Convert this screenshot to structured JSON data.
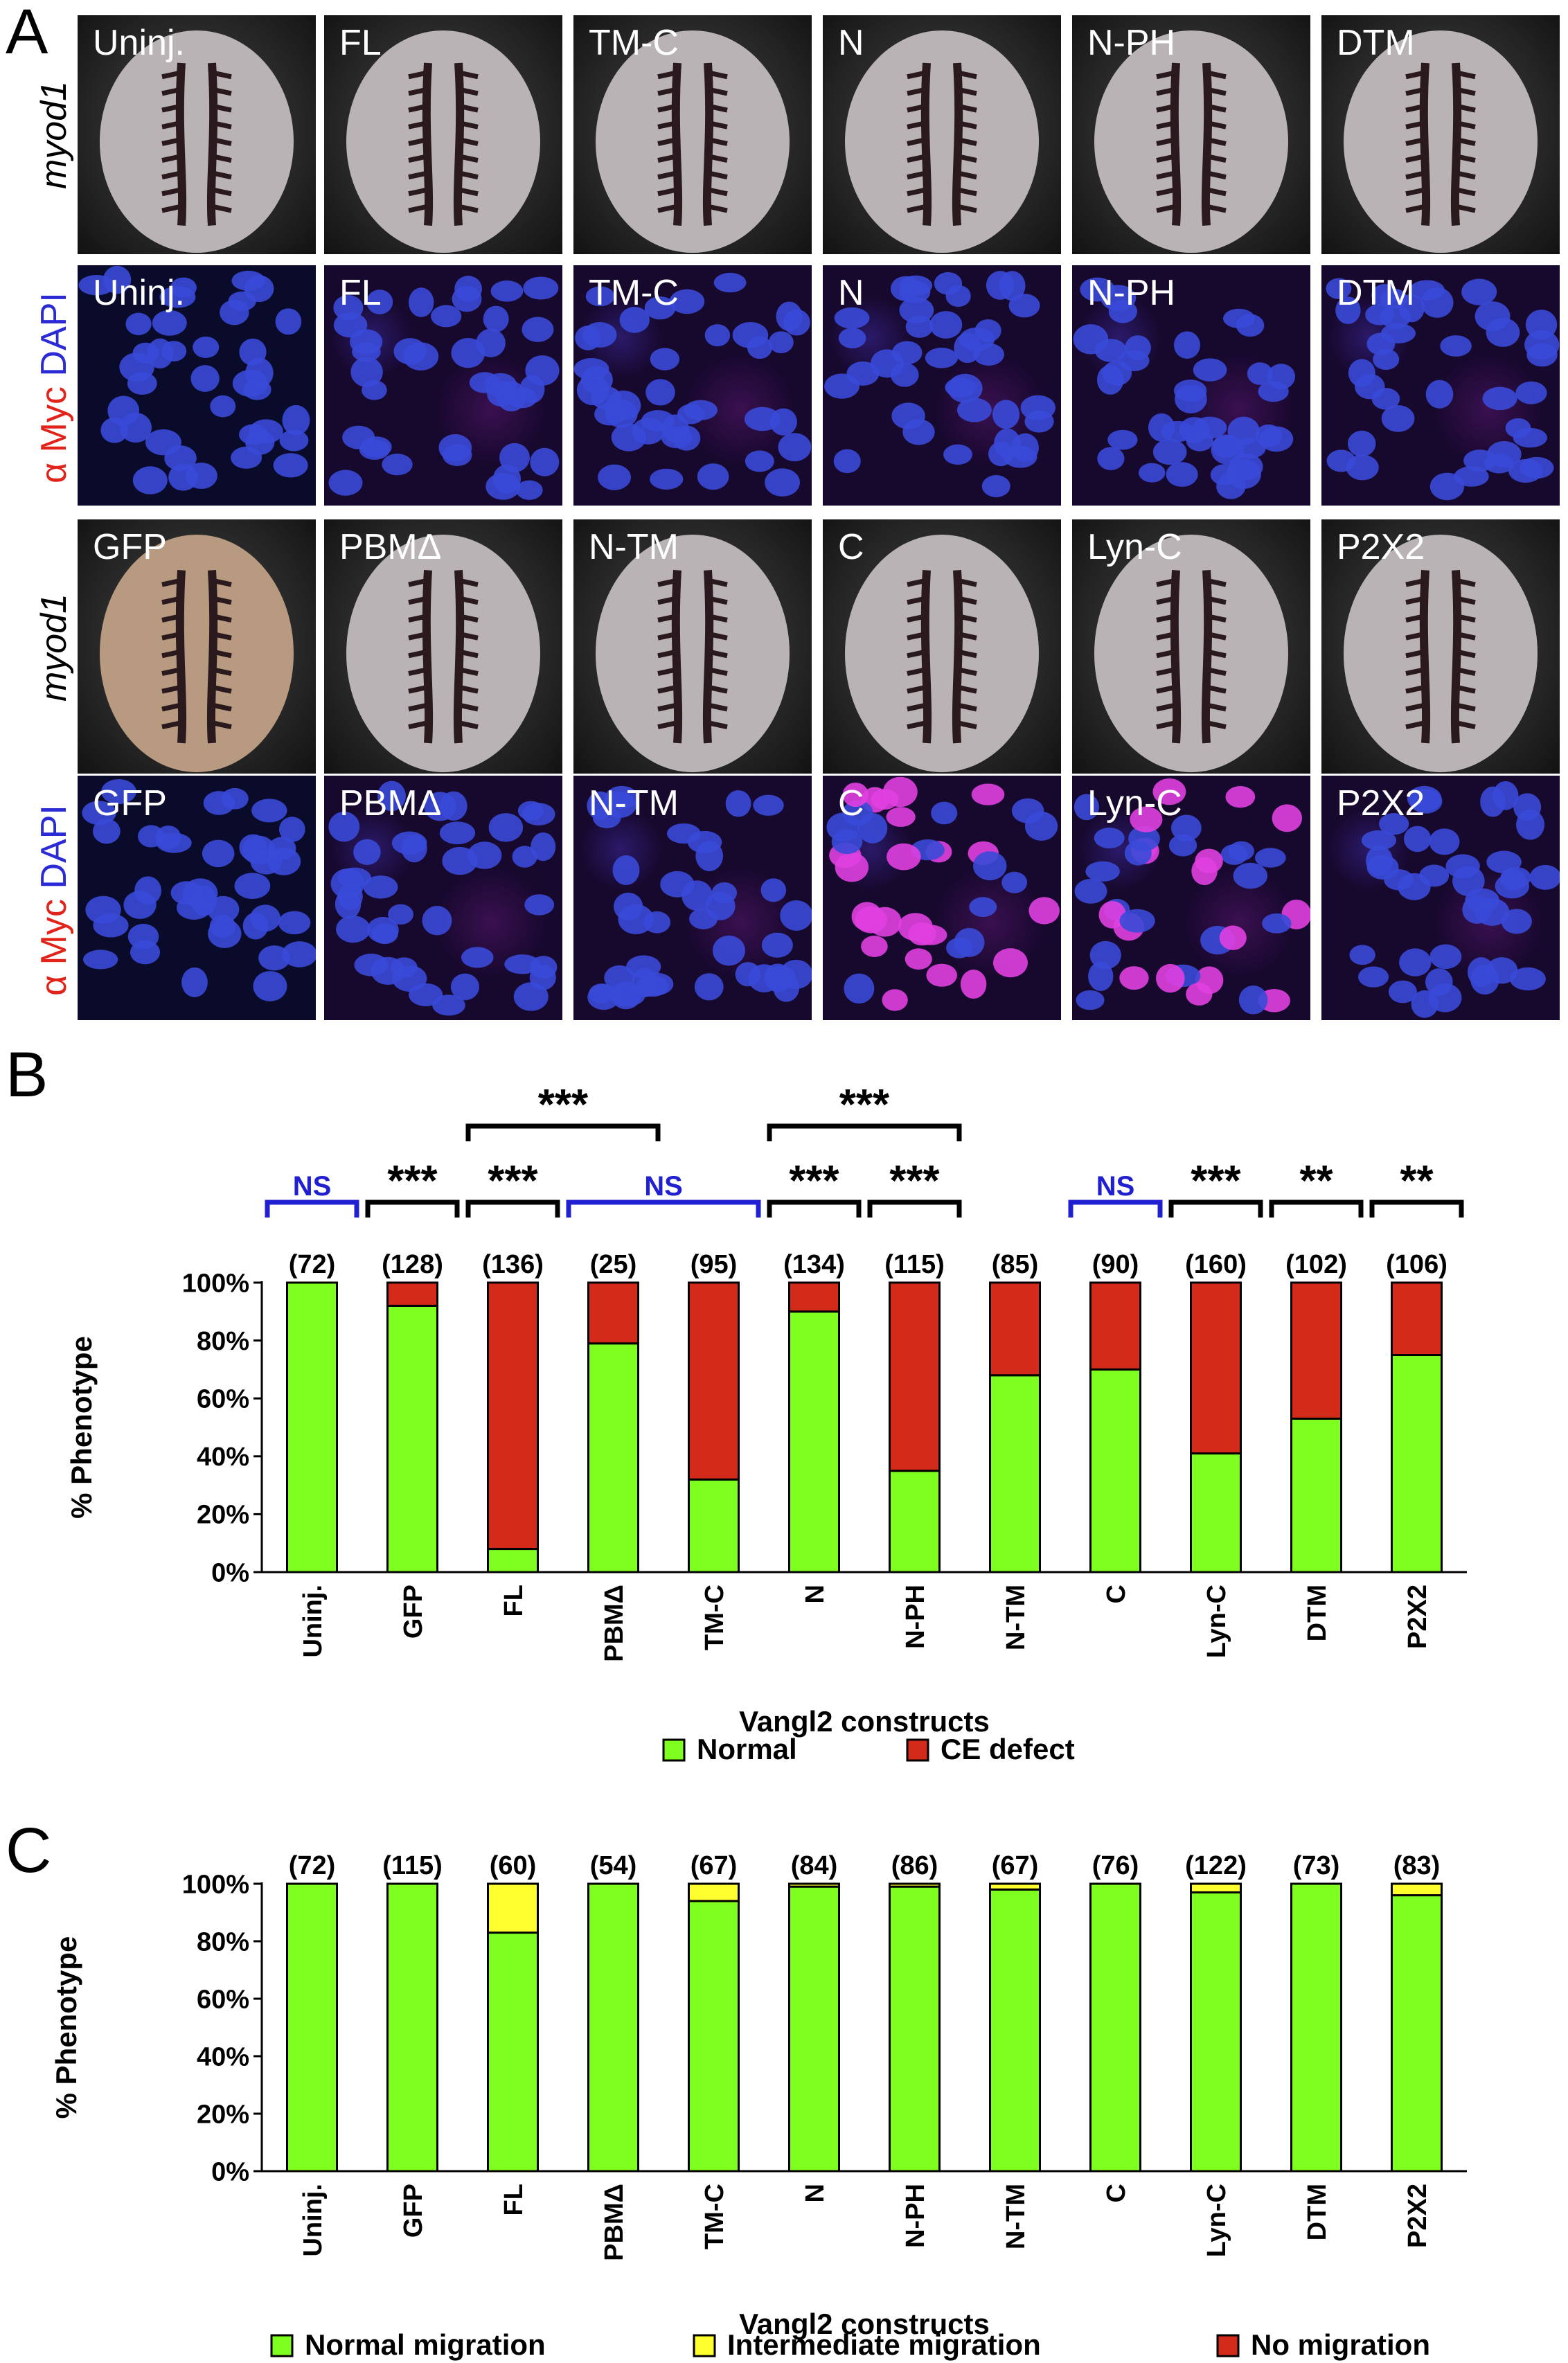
{
  "panels": {
    "A": "A",
    "B": "B",
    "C": "C"
  },
  "row_labels": {
    "row1_gene": "myod1",
    "row2_alpha": "α",
    "row2_myc": "Myc",
    "row2_dapi": "DAPI",
    "row3_gene": "myod1",
    "row4_alpha": "α",
    "row4_myc": "Myc",
    "row4_dapi": "DAPI"
  },
  "tiles": {
    "row1": [
      "Uninj.",
      "FL",
      "TM-C",
      "N",
      "N-PH",
      "DTM"
    ],
    "row2": [
      "Uninj.",
      "FL",
      "TM-C",
      "N",
      "N-PH",
      "DTM"
    ],
    "row3": [
      "GFP",
      "PBMΔ",
      "N-TM",
      "C",
      "Lyn-C",
      "P2X2"
    ],
    "row4": [
      "GFP",
      "PBMΔ",
      "N-TM",
      "C",
      "Lyn-C",
      "P2X2"
    ]
  },
  "colors": {
    "normal": "#7fff20",
    "ce_defect": "#d42a1a",
    "intermediate": "#ffff30",
    "no_migration": "#d42a1a",
    "ns_bracket": "#2020d0",
    "sig_bracket": "#000000"
  },
  "chart_data": [
    {
      "type": "bar",
      "stacked": true,
      "ylabel": "% Phenotype",
      "xlabel": "Vangl2 constructs",
      "ylim": [
        0,
        100
      ],
      "yticks": [
        "0%",
        "20%",
        "40%",
        "60%",
        "80%",
        "100%"
      ],
      "categories": [
        "Uninj.",
        "GFP",
        "FL",
        "PBMΔ",
        "TM-C",
        "N",
        "N-PH",
        "N-TM",
        "C",
        "Lyn-C",
        "DTM",
        "P2X2"
      ],
      "counts": [
        "(72)",
        "(128)",
        "(136)",
        "(25)",
        "(95)",
        "(134)",
        "(115)",
        "(85)",
        "(90)",
        "(160)",
        "(102)",
        "(106)"
      ],
      "series": [
        {
          "name": "Normal",
          "values": [
            100,
            92,
            8,
            79,
            32,
            90,
            35,
            68,
            70,
            41,
            53,
            75
          ]
        },
        {
          "name": "CE defect",
          "values": [
            0,
            8,
            92,
            21,
            68,
            10,
            65,
            32,
            30,
            59,
            47,
            25
          ]
        }
      ],
      "legend": "bottom",
      "significance": [
        {
          "from": 0,
          "to": 1,
          "label": "NS",
          "level": 1
        },
        {
          "from": 1,
          "to": 2,
          "label": "***",
          "level": 1
        },
        {
          "from": 2,
          "to": 3,
          "label": "***",
          "level": 1
        },
        {
          "from": 3,
          "to": 5,
          "label": "NS",
          "level": 1
        },
        {
          "from": 2,
          "to": 4,
          "label": "***",
          "level": 2
        },
        {
          "from": 5,
          "to": 6,
          "label": "***",
          "level": 1
        },
        {
          "from": 6,
          "to": 7,
          "label": "***",
          "level": 1
        },
        {
          "from": 5,
          "to": 7,
          "label": "***",
          "level": 2
        },
        {
          "from": 8,
          "to": 9,
          "label": "NS",
          "level": 1
        },
        {
          "from": 9,
          "to": 10,
          "label": "***",
          "level": 1
        },
        {
          "from": 10,
          "to": 11,
          "label": "**",
          "level": 1
        },
        {
          "from": 11,
          "to": 12,
          "label": "**",
          "level": 1
        }
      ]
    },
    {
      "type": "bar",
      "stacked": true,
      "ylabel": "% Phenotype",
      "xlabel": "Vangl2 constructs",
      "ylim": [
        0,
        100
      ],
      "yticks": [
        "0%",
        "20%",
        "40%",
        "60%",
        "80%",
        "100%"
      ],
      "categories": [
        "Uninj.",
        "GFP",
        "FL",
        "PBMΔ",
        "TM-C",
        "N",
        "N-PH",
        "N-TM",
        "C",
        "Lyn-C",
        "DTM",
        "P2X2"
      ],
      "counts": [
        "(72)",
        "(115)",
        "(60)",
        "(54)",
        "(67)",
        "(84)",
        "(86)",
        "(67)",
        "(76)",
        "(122)",
        "(73)",
        "(83)"
      ],
      "series": [
        {
          "name": "Normal migration",
          "values": [
            100,
            100,
            83,
            100,
            94,
            99,
            99,
            98,
            100,
            97,
            100,
            96
          ]
        },
        {
          "name": "Intermediate migration",
          "values": [
            0,
            0,
            17,
            0,
            6,
            1,
            1,
            2,
            0,
            3,
            0,
            4
          ]
        },
        {
          "name": "No migration",
          "values": [
            0,
            0,
            0,
            0,
            0,
            0,
            0,
            0,
            0,
            0,
            0,
            0
          ]
        }
      ],
      "legend": "bottom"
    }
  ]
}
